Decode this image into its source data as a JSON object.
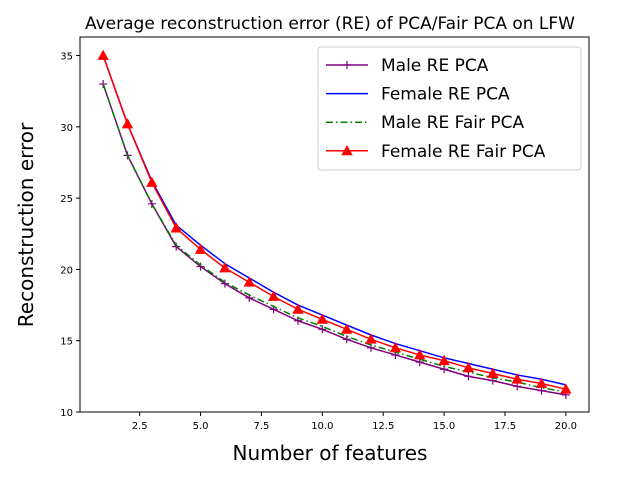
{
  "chart_data": {
    "type": "line",
    "title": "Average reconstruction error (RE) of PCA/Fair PCA on LFW",
    "xlabel": "Number of features",
    "ylabel": "Reconstruction error",
    "xlim": [
      0.05,
      20.95
    ],
    "ylim": [
      10,
      36.3
    ],
    "xticks": [
      2.5,
      5.0,
      7.5,
      10.0,
      12.5,
      15.0,
      17.5,
      20.0
    ],
    "xtick_labels": [
      "2.5",
      "5.0",
      "7.5",
      "10.0",
      "12.5",
      "15.0",
      "17.5",
      "20.0"
    ],
    "yticks": [
      10,
      15,
      20,
      25,
      30,
      35
    ],
    "ytick_labels": [
      "10",
      "15",
      "20",
      "25",
      "30",
      "35"
    ],
    "legend_position": "top-right",
    "x": [
      1,
      2,
      3,
      4,
      5,
      6,
      7,
      8,
      9,
      10,
      11,
      12,
      13,
      14,
      15,
      16,
      17,
      18,
      19,
      20
    ],
    "series": [
      {
        "name": "Male RE PCA",
        "color": "#800080",
        "line_style": "solid",
        "marker": "plus",
        "values": [
          33.0,
          28.0,
          24.6,
          21.6,
          20.2,
          19.0,
          18.0,
          17.2,
          16.4,
          15.8,
          15.1,
          14.5,
          14.0,
          13.5,
          13.0,
          12.5,
          12.2,
          11.8,
          11.5,
          11.2
        ]
      },
      {
        "name": "Female RE PCA",
        "color": "#0000ff",
        "line_style": "solid",
        "marker": "none",
        "values": [
          35.0,
          30.2,
          26.2,
          23.1,
          21.7,
          20.4,
          19.4,
          18.4,
          17.5,
          16.8,
          16.1,
          15.4,
          14.8,
          14.3,
          13.8,
          13.4,
          13.0,
          12.6,
          12.3,
          11.9
        ]
      },
      {
        "name": "Male RE Fair PCA",
        "color": "#008000",
        "line_style": "dashdot",
        "marker": "none",
        "values": [
          33.0,
          28.0,
          24.6,
          21.7,
          20.3,
          19.1,
          18.2,
          17.4,
          16.6,
          16.0,
          15.3,
          14.7,
          14.2,
          13.7,
          13.2,
          12.8,
          12.4,
          12.1,
          11.7,
          11.4
        ]
      },
      {
        "name": "Female RE Fair PCA",
        "color": "#ff0000",
        "line_style": "solid",
        "marker": "triangle",
        "values": [
          35.0,
          30.2,
          26.1,
          22.9,
          21.4,
          20.1,
          19.1,
          18.1,
          17.2,
          16.5,
          15.8,
          15.1,
          14.5,
          14.0,
          13.6,
          13.1,
          12.7,
          12.3,
          12.0,
          11.6
        ]
      }
    ]
  }
}
